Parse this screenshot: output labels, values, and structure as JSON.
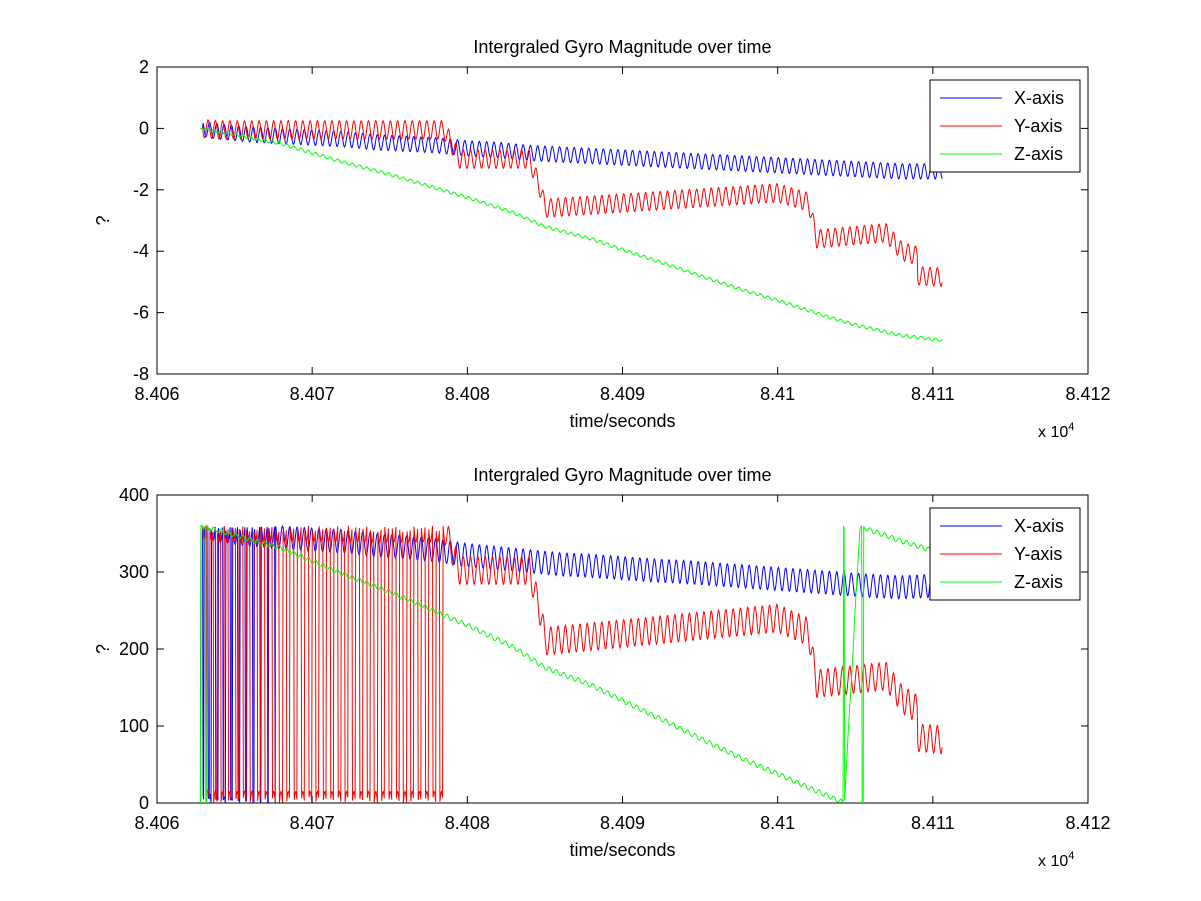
{
  "chart_data": [
    {
      "type": "line",
      "title": "Intergraled Gyro Magnitude over time",
      "xlabel": "time/seconds",
      "ylabel": "?",
      "x_exponent_label": "x 10",
      "x_exponent_power": "4",
      "xlim": [
        8.406,
        8.412
      ],
      "ylim": [
        -8,
        2
      ],
      "xticks": [
        "8.406",
        "8.407",
        "8.408",
        "8.409",
        "8.41",
        "8.411",
        "8.412"
      ],
      "yticks": [
        "-8",
        "-6",
        "-4",
        "-2",
        "0",
        "2"
      ],
      "legend_position": "top-right",
      "grid": false,
      "x_range_data": [
        8.40628,
        8.41106
      ],
      "series": [
        {
          "name": "X-axis",
          "color": "#0000ff",
          "points": [
            [
              8.40628,
              0.0
            ],
            [
              8.4064,
              -0.1
            ],
            [
              8.4066,
              -0.2
            ],
            [
              8.4068,
              -0.25
            ],
            [
              8.407,
              -0.3
            ],
            [
              8.4072,
              -0.35
            ],
            [
              8.4074,
              -0.45
            ],
            [
              8.4076,
              -0.5
            ],
            [
              8.4078,
              -0.55
            ],
            [
              8.408,
              -0.65
            ],
            [
              8.4082,
              -0.7
            ],
            [
              8.4084,
              -0.8
            ],
            [
              8.4086,
              -0.85
            ],
            [
              8.4088,
              -0.9
            ],
            [
              8.409,
              -0.95
            ],
            [
              8.4092,
              -1.0
            ],
            [
              8.4094,
              -1.05
            ],
            [
              8.4096,
              -1.1
            ],
            [
              8.4098,
              -1.15
            ],
            [
              8.41,
              -1.2
            ],
            [
              8.4102,
              -1.25
            ],
            [
              8.4104,
              -1.3
            ],
            [
              8.4106,
              -1.35
            ],
            [
              8.4108,
              -1.4
            ],
            [
              8.41106,
              -1.4
            ]
          ],
          "oscillation_amplitude": 0.25
        },
        {
          "name": "Y-axis",
          "color": "#ff0000",
          "points": [
            [
              8.40628,
              0.0
            ],
            [
              8.4064,
              -0.05
            ],
            [
              8.407,
              -0.05
            ],
            [
              8.40785,
              -0.05
            ],
            [
              8.40795,
              -1.0
            ],
            [
              8.4084,
              -1.0
            ],
            [
              8.40848,
              -2.1
            ],
            [
              8.4085,
              -2.6
            ],
            [
              8.41,
              -2.1
            ],
            [
              8.4102,
              -2.4
            ],
            [
              8.41025,
              -3.6
            ],
            [
              8.4107,
              -3.4
            ],
            [
              8.4108,
              -4.0
            ],
            [
              8.4109,
              -4.15
            ],
            [
              8.4109,
              -4.8
            ],
            [
              8.41106,
              -4.85
            ]
          ],
          "oscillation_amplitude": 0.3
        },
        {
          "name": "Z-axis",
          "color": "#00ff00",
          "points": [
            [
              8.40628,
              0.0
            ],
            [
              8.4065,
              -0.2
            ],
            [
              8.4068,
              -0.5
            ],
            [
              8.407,
              -0.8
            ],
            [
              8.4072,
              -1.1
            ],
            [
              8.4075,
              -1.5
            ],
            [
              8.4078,
              -1.95
            ],
            [
              8.408,
              -2.25
            ],
            [
              8.4083,
              -2.75
            ],
            [
              8.4085,
              -3.2
            ],
            [
              8.4088,
              -3.6
            ],
            [
              8.409,
              -3.95
            ],
            [
              8.4093,
              -4.45
            ],
            [
              8.4095,
              -4.8
            ],
            [
              8.4098,
              -5.3
            ],
            [
              8.41,
              -5.6
            ],
            [
              8.4103,
              -6.1
            ],
            [
              8.4105,
              -6.4
            ],
            [
              8.4108,
              -6.75
            ],
            [
              8.41106,
              -6.9
            ]
          ],
          "oscillation_amplitude": 0.05
        }
      ]
    },
    {
      "type": "line",
      "title": "Intergraled Gyro Magnitude over time",
      "xlabel": "time/seconds",
      "ylabel": "?",
      "x_exponent_label": "x 10",
      "x_exponent_power": "4",
      "xlim": [
        8.406,
        8.412
      ],
      "ylim": [
        0,
        400
      ],
      "xticks": [
        "8.406",
        "8.407",
        "8.408",
        "8.409",
        "8.41",
        "8.411",
        "8.412"
      ],
      "yticks": [
        "0",
        "100",
        "200",
        "300",
        "400"
      ],
      "legend_position": "top-right",
      "grid": false,
      "wrap_period": 360,
      "series": [
        {
          "name": "X-axis",
          "color": "#0000ff",
          "points": [
            [
              8.40628,
              360.0
            ],
            [
              8.4064,
              354.0
            ],
            [
              8.4066,
              348.0
            ],
            [
              8.4068,
              345.0
            ],
            [
              8.407,
              342.0
            ],
            [
              8.4072,
              340.0
            ],
            [
              8.4074,
              335.0
            ],
            [
              8.4076,
              332.0
            ],
            [
              8.4078,
              328.0
            ],
            [
              8.408,
              322.0
            ],
            [
              8.4082,
              318.0
            ],
            [
              8.4084,
              314.0
            ],
            [
              8.4086,
              310.0
            ],
            [
              8.4088,
              308.0
            ],
            [
              8.409,
              305.0
            ],
            [
              8.4092,
              302.0
            ],
            [
              8.4094,
              300.0
            ],
            [
              8.4096,
              297.0
            ],
            [
              8.4098,
              294.0
            ],
            [
              8.41,
              291.0
            ],
            [
              8.4102,
              288.0
            ],
            [
              8.4104,
              285.0
            ],
            [
              8.4106,
              282.0
            ],
            [
              8.4108,
              280.0
            ],
            [
              8.41106,
              283.0
            ]
          ],
          "oscillation_amplitude": 15
        },
        {
          "name": "Y-axis",
          "color": "#ff0000",
          "points": [
            [
              8.40628,
              360.0
            ],
            [
              8.4064,
              357.0
            ],
            [
              8.407,
              357.0
            ],
            [
              8.40785,
              357.0
            ],
            [
              8.40795,
              302.0
            ],
            [
              8.4084,
              302.0
            ],
            [
              8.40848,
              240.0
            ],
            [
              8.4085,
              210.0
            ],
            [
              8.41,
              240.0
            ],
            [
              8.4102,
              222.0
            ],
            [
              8.41025,
              155.0
            ],
            [
              8.4107,
              165.0
            ],
            [
              8.4108,
              135.0
            ],
            [
              8.4109,
              122.0
            ],
            [
              8.4109,
              85.0
            ],
            [
              8.41106,
              82.0
            ]
          ],
          "oscillation_amplitude": 18
        },
        {
          "name": "Z-axis",
          "color": "#00ff00",
          "points": [
            [
              8.40628,
              360.0
            ],
            [
              8.4065,
              348.0
            ],
            [
              8.4068,
              331.0
            ],
            [
              8.407,
              314.0
            ],
            [
              8.4072,
              297.0
            ],
            [
              8.4075,
              274.0
            ],
            [
              8.4078,
              248.0
            ],
            [
              8.408,
              231.0
            ],
            [
              8.4083,
              202.0
            ],
            [
              8.4085,
              176.0
            ],
            [
              8.4088,
              153.0
            ],
            [
              8.409,
              133.0
            ],
            [
              8.4093,
              104.0
            ],
            [
              8.4095,
              84.0
            ],
            [
              8.4098,
              55.0
            ],
            [
              8.41,
              38.0
            ],
            [
              8.4102,
              20.0
            ],
            [
              8.41043,
              0.0
            ],
            [
              8.41053,
              359.0
            ],
            [
              8.4108,
              340.0
            ],
            [
              8.41106,
              324.0
            ]
          ],
          "oscillation_amplitude": 3
        }
      ]
    }
  ]
}
